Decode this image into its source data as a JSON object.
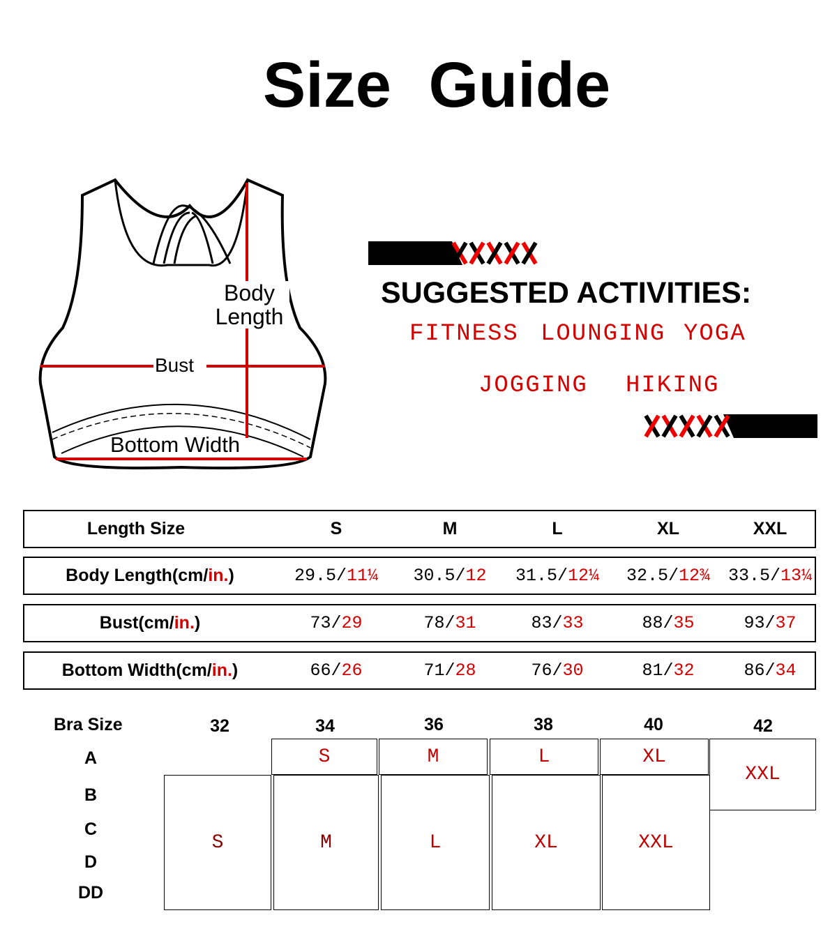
{
  "title": "Size Guide",
  "diagram": {
    "body_length": "Body",
    "body_length2": "Length",
    "bust": "Bust",
    "bottom_width": "Bottom Width"
  },
  "activities": {
    "heading": "SUGGESTED ACTIVITIES:",
    "items": [
      "FITNESS",
      "LOUNGING",
      "YOGA",
      "JOGGING",
      "HIKING"
    ]
  },
  "colors": {
    "accent": "#d40000",
    "text": "#000000"
  },
  "size_table": {
    "header": {
      "label": "Length Size",
      "sizes": [
        "S",
        "M",
        "L",
        "XL",
        "XXL"
      ]
    },
    "rows": [
      {
        "label": "Body Length(cm/",
        "label_red": "in.",
        "label_end": ")",
        "values": [
          [
            "29.5/",
            "11¼"
          ],
          [
            "30.5/",
            "12"
          ],
          [
            "31.5/",
            "12¼"
          ],
          [
            "32.5/",
            "12¾"
          ],
          [
            "33.5/",
            "13¼"
          ]
        ]
      },
      {
        "label": "Bust(cm/",
        "label_red": "in.",
        "label_end": ")",
        "values": [
          [
            "73/",
            "29"
          ],
          [
            "78/",
            "31"
          ],
          [
            "83/",
            "33"
          ],
          [
            "88/",
            "35"
          ],
          [
            "93/",
            "37"
          ]
        ]
      },
      {
        "label": "Bottom Width(cm/",
        "label_red": "in.",
        "label_end": ")",
        "values": [
          [
            "66/",
            "26"
          ],
          [
            "71/",
            "28"
          ],
          [
            "76/",
            "30"
          ],
          [
            "81/",
            "32"
          ],
          [
            "86/",
            "34"
          ]
        ]
      }
    ]
  },
  "bra_table": {
    "label": "Bra Size",
    "bands": [
      "32",
      "34",
      "36",
      "38",
      "40",
      "42"
    ],
    "cups": [
      "A",
      "B",
      "C",
      "D",
      "DD"
    ],
    "cup_a_sizes": [
      "S",
      "M",
      "L",
      "XL"
    ],
    "xxl": "XXL",
    "lower_sizes": [
      "S",
      "M",
      "L",
      "XL",
      "XXL"
    ]
  }
}
